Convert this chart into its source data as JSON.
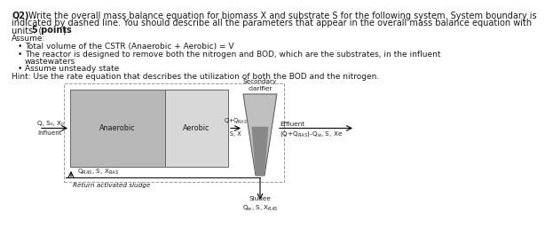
{
  "bg_color": "#ffffff",
  "text_color": "#1a1a1a",
  "anaerobic_fill": "#b8b8b8",
  "aerobic_fill": "#d8d8d8",
  "clarifier_fill": "#c0c0c0",
  "dashed_box_color": "#999999",
  "reactor_box_color": "#666666",
  "fs_title": 7.0,
  "fs_body": 6.5,
  "fs_small": 5.8,
  "fs_tiny": 5.2,
  "line1": "Q2) Write the overall mass balance equation for biomass X and substrate S for the following system. System boundary is",
  "line2": "indicated by dashed line. You should describe all the parameters that appear in the overall mass balance equation with",
  "line3_pre": "units. (",
  "line3_bold": "5 points",
  "line3_post": ")",
  "assume": "Assume:",
  "b1": "Total volume of the CSTR (Anaerobic + Aerobic) = V",
  "b2": "The reactor is designed to remove both the nitrogen and BOD, which are the substrates, in the influent",
  "b2b": "wastewaters",
  "b3": "Assume unsteady state",
  "hint": "Hint: Use the rate equation that describes the utilization of both the BOD and the nitrogen.",
  "label_influent": "Influent",
  "label_qsx": "Q, S₀, X₀",
  "label_anaerobic": "Anaerobic",
  "label_aerobic": "Aerobic",
  "label_qqras": "Q+Q",
  "label_qqras_sub": "RAS",
  "label_sx": "S, X",
  "label_secondary": "Secondary",
  "label_clarifier": "clarifier",
  "label_effluent": "Effluent",
  "label_effluent_formula": "(Q+Q",
  "label_effluent_ras": "RAS",
  "label_effluent_rest": ")-Q",
  "label_effluent_w": "w",
  "label_effluent_sxe": ", S, Xe",
  "label_qras": "Q",
  "label_qras_sub": "RAS",
  "label_qras_rest": ", S, X",
  "label_qras_sub2": "RAS",
  "label_return": "Return activated sludge",
  "label_sludge": "Sludee",
  "label_qw": "Q",
  "label_qw_sub": "w",
  "label_qw_rest": ", S, X",
  "label_qw_sub2": "RAS"
}
